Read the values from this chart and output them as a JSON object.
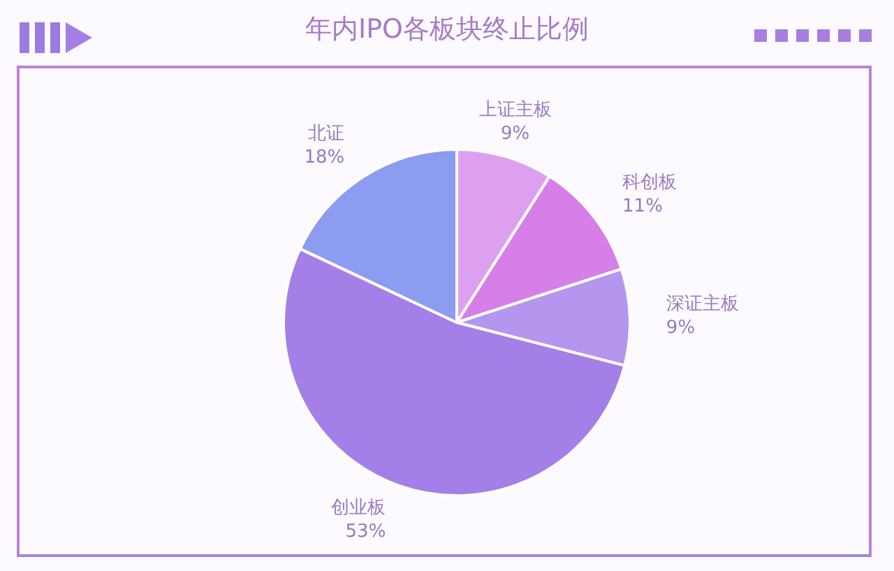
{
  "chart_data": {
    "type": "pie",
    "title": "年内IPO各板块终止比例",
    "categories": [
      "上证主板",
      "科创板",
      "深证主板",
      "创业板",
      "北证"
    ],
    "values": [
      9,
      11,
      9,
      53,
      18
    ],
    "value_labels": [
      "9%",
      "11%",
      "9%",
      "53%",
      "18%"
    ],
    "colors": [
      "#dda0f0",
      "#d67fe8",
      "#b496ee",
      "#a57fe8",
      "#8c9cf0"
    ],
    "legend": false
  }
}
